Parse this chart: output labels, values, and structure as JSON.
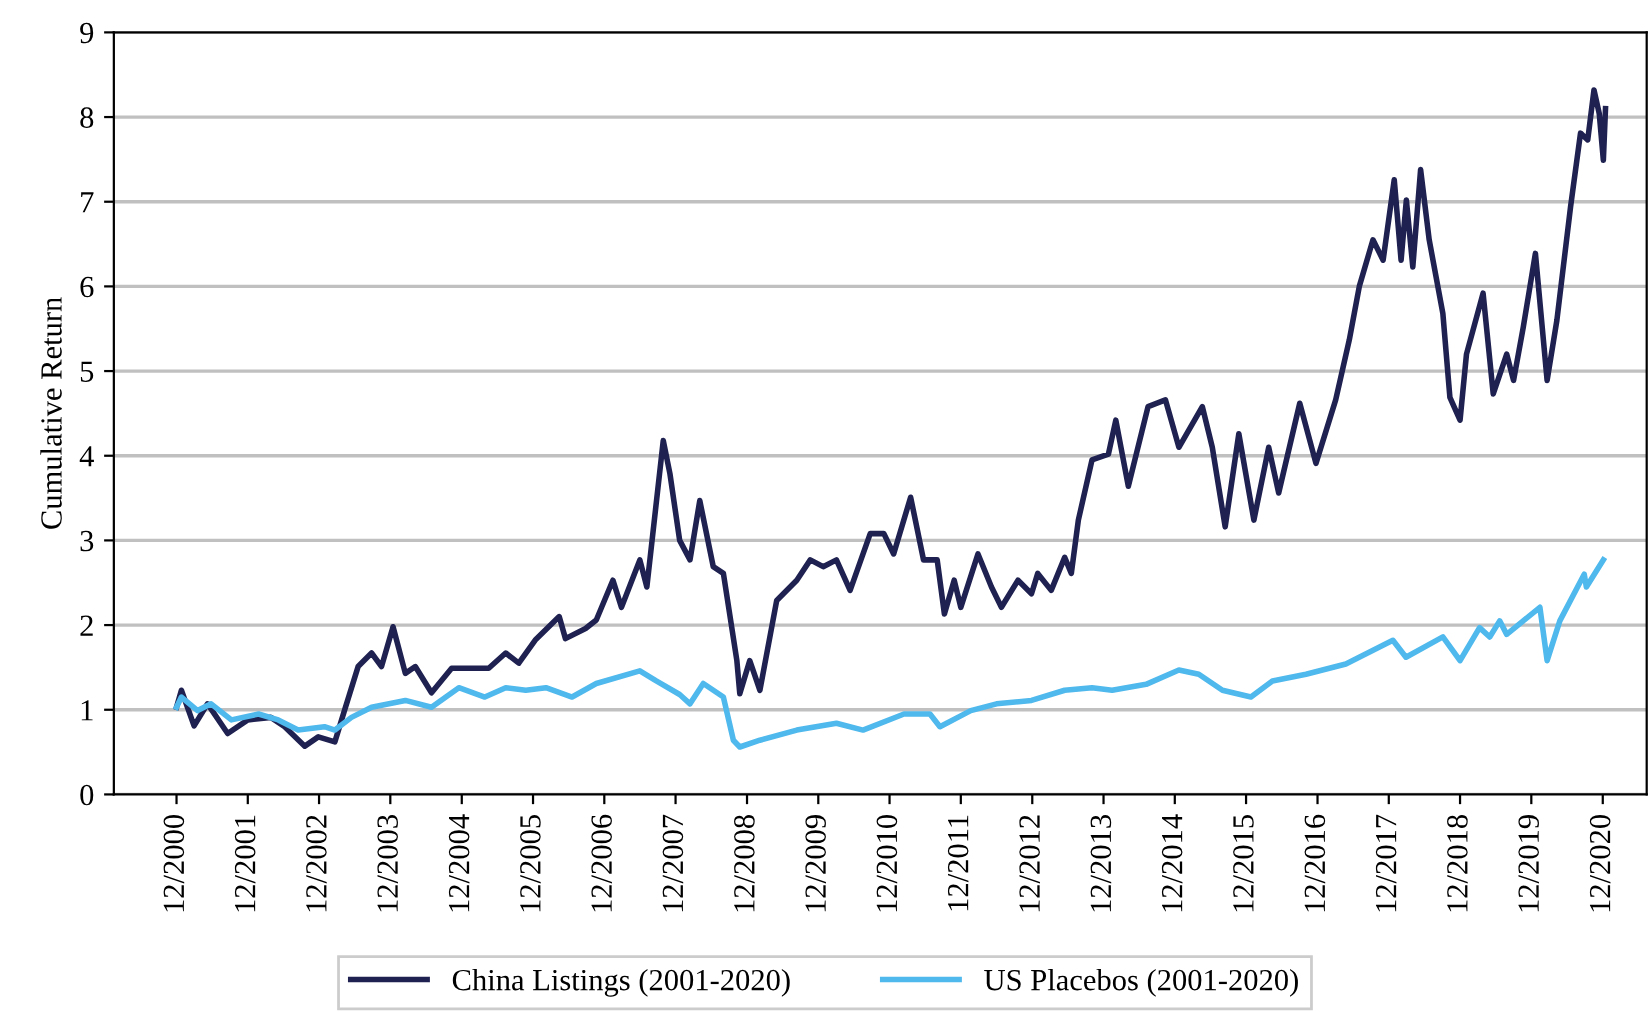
{
  "chart_data": {
    "type": "line",
    "ylabel": "Cumulative Return",
    "xlim": [
      "2000-01-15",
      "2021-07-14"
    ],
    "ylim": [
      0,
      9
    ],
    "yticks": [
      0,
      1,
      2,
      3,
      4,
      5,
      6,
      7,
      8,
      9
    ],
    "xticks": [
      {
        "value": "2000-12",
        "label": "12/2000"
      },
      {
        "value": "2001-12",
        "label": "12/2001"
      },
      {
        "value": "2002-12",
        "label": "12/2002"
      },
      {
        "value": "2003-12",
        "label": "12/2003"
      },
      {
        "value": "2004-12",
        "label": "12/2004"
      },
      {
        "value": "2005-12",
        "label": "12/2005"
      },
      {
        "value": "2006-12",
        "label": "12/2006"
      },
      {
        "value": "2007-12",
        "label": "12/2007"
      },
      {
        "value": "2008-12",
        "label": "12/2008"
      },
      {
        "value": "2009-12",
        "label": "12/2009"
      },
      {
        "value": "2010-12",
        "label": "12/2010"
      },
      {
        "value": "2011-12",
        "label": "12/2011"
      },
      {
        "value": "2012-12",
        "label": "12/2012"
      },
      {
        "value": "2013-12",
        "label": "12/2013"
      },
      {
        "value": "2014-12",
        "label": "12/2014"
      },
      {
        "value": "2015-12",
        "label": "12/2015"
      },
      {
        "value": "2016-12",
        "label": "12/2016"
      },
      {
        "value": "2017-12",
        "label": "12/2017"
      },
      {
        "value": "2018-12",
        "label": "12/2018"
      },
      {
        "value": "2019-12",
        "label": "12/2019"
      },
      {
        "value": "2020-12",
        "label": "12/2020"
      }
    ],
    "grid": "y",
    "legend": "bottom",
    "marker": "none",
    "line_style": "solid",
    "series": [
      {
        "name": "China Listings (2001-2020)",
        "color": "#1f2150",
        "x": [
          "2000-12-01",
          "2000-12-26",
          "2001-03-01",
          "2001-05-09",
          "2001-08-20",
          "2001-12-01",
          "2002-03-29",
          "2002-06-08",
          "2002-09-19",
          "2002-11-27",
          "2003-02-20",
          "2003-04-10",
          "2003-06-19",
          "2003-08-27",
          "2003-10-17",
          "2003-12-15",
          "2004-02-16",
          "2004-04-07",
          "2004-06-29",
          "2004-10-10",
          "2005-01-07",
          "2005-04-18",
          "2005-07-14",
          "2005-09-19",
          "2005-12-15",
          "2006-04-14",
          "2006-05-16",
          "2006-08-27",
          "2006-10-21",
          "2007-01-14",
          "2007-02-27",
          "2007-06-01",
          "2007-07-07",
          "2007-09-29",
          "2007-11-02",
          "2007-12-22",
          "2008-02-13",
          "2008-04-03",
          "2008-06-11",
          "2008-08-02",
          "2008-10-10",
          "2008-10-25",
          "2008-12-15",
          "2009-02-05",
          "2009-05-02",
          "2009-08-13",
          "2009-10-21",
          "2009-12-26",
          "2010-03-04",
          "2010-05-13",
          "2010-08-24",
          "2010-11-02",
          "2010-12-22",
          "2011-03-19",
          "2011-05-24",
          "2011-08-02",
          "2011-09-08",
          "2011-10-28",
          "2011-12-01",
          "2012-02-27",
          "2012-05-06",
          "2012-06-26",
          "2012-09-19",
          "2012-11-27",
          "2012-12-29",
          "2013-03-08",
          "2013-05-16",
          "2013-06-19",
          "2013-07-25",
          "2013-10-03",
          "2013-12-26",
          "2014-02-02",
          "2014-04-07",
          "2014-07-17",
          "2014-10-14",
          "2014-12-22",
          "2015-04-21",
          "2015-06-11",
          "2015-08-16",
          "2015-10-25",
          "2016-01-10",
          "2016-03-26",
          "2016-05-16",
          "2016-09-01",
          "2016-11-23",
          "2017-03-04",
          "2017-05-13",
          "2017-07-03",
          "2017-09-11",
          "2017-11-02",
          "2017-12-29",
          "2018-02-02",
          "2018-03-01",
          "2018-04-03",
          "2018-05-13",
          "2018-06-26",
          "2018-09-04",
          "2018-10-10",
          "2018-12-01",
          "2019-01-03",
          "2019-03-29",
          "2019-05-20",
          "2019-07-28",
          "2019-09-01",
          "2019-10-21",
          "2019-12-22",
          "2020-02-20",
          "2020-04-10",
          "2020-06-19",
          "2020-08-09",
          "2020-09-15",
          "2020-10-17",
          "2020-11-13",
          "2020-12-04",
          "2020-12-15"
        ],
        "values": [
          1.03,
          1.23,
          0.81,
          1.07,
          0.72,
          0.88,
          0.91,
          0.8,
          0.57,
          0.68,
          0.62,
          0.99,
          1.51,
          1.67,
          1.51,
          1.98,
          1.43,
          1.51,
          1.2,
          1.49,
          1.49,
          1.49,
          1.67,
          1.55,
          1.83,
          2.1,
          1.84,
          1.96,
          2.06,
          2.53,
          2.21,
          2.77,
          2.45,
          4.18,
          3.79,
          3.0,
          2.77,
          3.47,
          2.69,
          2.61,
          1.58,
          1.19,
          1.58,
          1.23,
          2.29,
          2.53,
          2.77,
          2.69,
          2.77,
          2.41,
          3.08,
          3.08,
          2.84,
          3.51,
          2.77,
          2.77,
          2.13,
          2.53,
          2.21,
          2.84,
          2.45,
          2.21,
          2.53,
          2.37,
          2.61,
          2.41,
          2.8,
          2.61,
          3.24,
          3.95,
          4.02,
          4.42,
          3.64,
          4.58,
          4.66,
          4.1,
          4.58,
          4.1,
          3.16,
          4.26,
          3.24,
          4.1,
          3.56,
          4.62,
          3.91,
          4.66,
          5.37,
          6.0,
          6.55,
          6.31,
          7.26,
          6.31,
          7.02,
          6.23,
          7.38,
          6.55,
          5.68,
          4.69,
          4.42,
          5.2,
          5.92,
          4.73,
          5.2,
          4.89,
          5.52,
          6.39,
          4.89,
          5.6,
          6.94,
          7.81,
          7.73,
          8.32,
          8.04,
          7.49,
          8.1
        ]
      },
      {
        "name": "US Placebos (2001-2020)",
        "color": "#4fb8ec",
        "x": [
          "2000-12-01",
          "2000-12-26",
          "2001-03-19",
          "2001-05-27",
          "2001-09-08",
          "2002-01-25",
          "2002-05-06",
          "2002-08-16",
          "2002-12-29",
          "2003-02-20",
          "2003-05-16",
          "2003-08-27",
          "2004-02-16",
          "2004-06-29",
          "2004-11-16",
          "2005-03-29",
          "2005-07-14",
          "2005-10-25",
          "2006-02-05",
          "2006-06-19",
          "2006-10-21",
          "2007-06-01",
          "2007-08-24",
          "2007-12-22",
          "2008-02-13",
          "2008-04-21",
          "2008-08-02",
          "2008-09-22",
          "2008-10-25",
          "2009-02-05",
          "2009-08-13",
          "2010-03-04",
          "2010-07-18",
          "2011-02-13",
          "2011-06-26",
          "2011-08-16",
          "2012-01-21",
          "2012-06-01",
          "2012-11-27",
          "2013-05-16",
          "2013-10-03",
          "2014-01-14",
          "2014-07-07",
          "2014-12-22",
          "2015-04-03",
          "2015-08-02",
          "2015-12-26",
          "2016-04-14",
          "2016-10-03",
          "2017-04-25",
          "2017-12-22",
          "2018-02-27",
          "2018-09-04",
          "2018-12-01",
          "2019-03-11",
          "2019-05-02",
          "2019-06-22",
          "2019-07-28",
          "2020-01-14",
          "2020-02-20",
          "2020-04-25",
          "2020-08-28",
          "2020-09-08",
          "2020-12-04"
        ],
        "values": [
          1.03,
          1.15,
          0.99,
          1.07,
          0.88,
          0.95,
          0.88,
          0.76,
          0.8,
          0.76,
          0.91,
          1.03,
          1.11,
          1.03,
          1.26,
          1.15,
          1.26,
          1.23,
          1.26,
          1.15,
          1.31,
          1.46,
          1.34,
          1.18,
          1.07,
          1.31,
          1.15,
          0.64,
          0.56,
          0.64,
          0.76,
          0.84,
          0.76,
          0.95,
          0.95,
          0.8,
          0.99,
          1.07,
          1.11,
          1.23,
          1.26,
          1.23,
          1.3,
          1.47,
          1.42,
          1.23,
          1.15,
          1.34,
          1.42,
          1.54,
          1.82,
          1.62,
          1.86,
          1.58,
          1.97,
          1.86,
          2.05,
          1.89,
          2.21,
          1.58,
          2.05,
          2.6,
          2.45,
          2.77
        ]
      }
    ]
  }
}
